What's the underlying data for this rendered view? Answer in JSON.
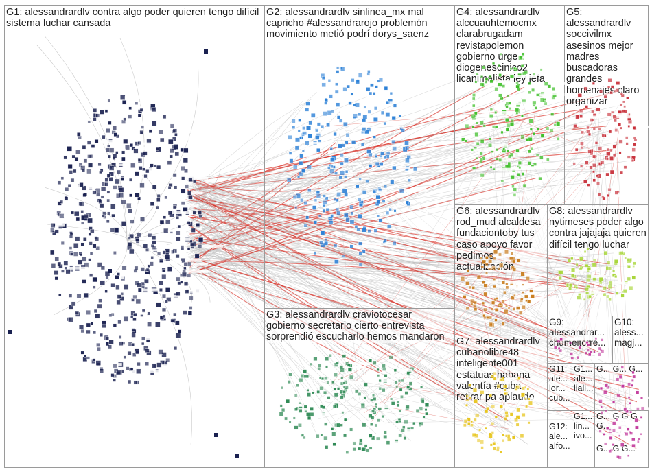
{
  "groups": [
    {
      "id": "G1",
      "label": "G1: alessandrardlv contra algo poder quieren tengo difícil sistema luchar cansada"
    },
    {
      "id": "G2",
      "label": "G2: alessandrardlv sinlinea_mx mal capricho #alessandrarojo problemón movimiento metió podrí dorys_saenz"
    },
    {
      "id": "G3",
      "label": "G3: alessandrardlv craviotocesar gobierno secretario cierto entrevista sorprendió escucharlo hemos mandaron"
    },
    {
      "id": "G4",
      "label": "G4: alessandrardlv alccuauhtemocmx clarabrugadam revistapolemon gobierno urge diogenescinico2 licanimalista ley jefa"
    },
    {
      "id": "G5",
      "label": "G5: alessandrardlv soccivilmx asesinos mejor madres buscadoras grandes homenajes claro organizar"
    },
    {
      "id": "G6",
      "label": "G6: alessandrardlv rod_mud alcaldesa fundaciontoby tus caso apoyo favor pedimos actualización"
    },
    {
      "id": "G7",
      "label": "G7: alessandrardlv cubanolibre48 inteligente001 estatuas habana valentía #cuba retirar pa aplaudo"
    },
    {
      "id": "G8",
      "label": "G8: alessandrardlv nytimeses poder algo contra jajajaja quieren difícil tengo luchar"
    },
    {
      "id": "G9",
      "label": "G9: alessandrar... chumeltorre..."
    },
    {
      "id": "G10",
      "label": "G10: aless... magj..."
    },
    {
      "id": "G11",
      "label": "G11: ale... lor... cub..."
    },
    {
      "id": "G11b",
      "label": "G1... ale... liali..."
    },
    {
      "id": "G12",
      "label": "G12: ale... alfo..."
    },
    {
      "id": "G1x",
      "label": "G1... lin... ivo..."
    },
    {
      "id": "Gm1",
      "label": "G... G... G..."
    },
    {
      "id": "Gm2",
      "label": "G... G G G G..."
    },
    {
      "id": "Gm3",
      "label": "G... G G..."
    }
  ],
  "colors": {
    "g1": "#1a2150",
    "g2": "#2a7fd6",
    "g3": "#2f8a55",
    "g4": "#3fbf2a",
    "g5": "#c8303a",
    "g6": "#c87a1a",
    "g7": "#e7c41a",
    "g8": "#a8d63a",
    "g9": "#c0359a",
    "edge": "#bdbdbd",
    "edge_hot": "#d8332a"
  }
}
